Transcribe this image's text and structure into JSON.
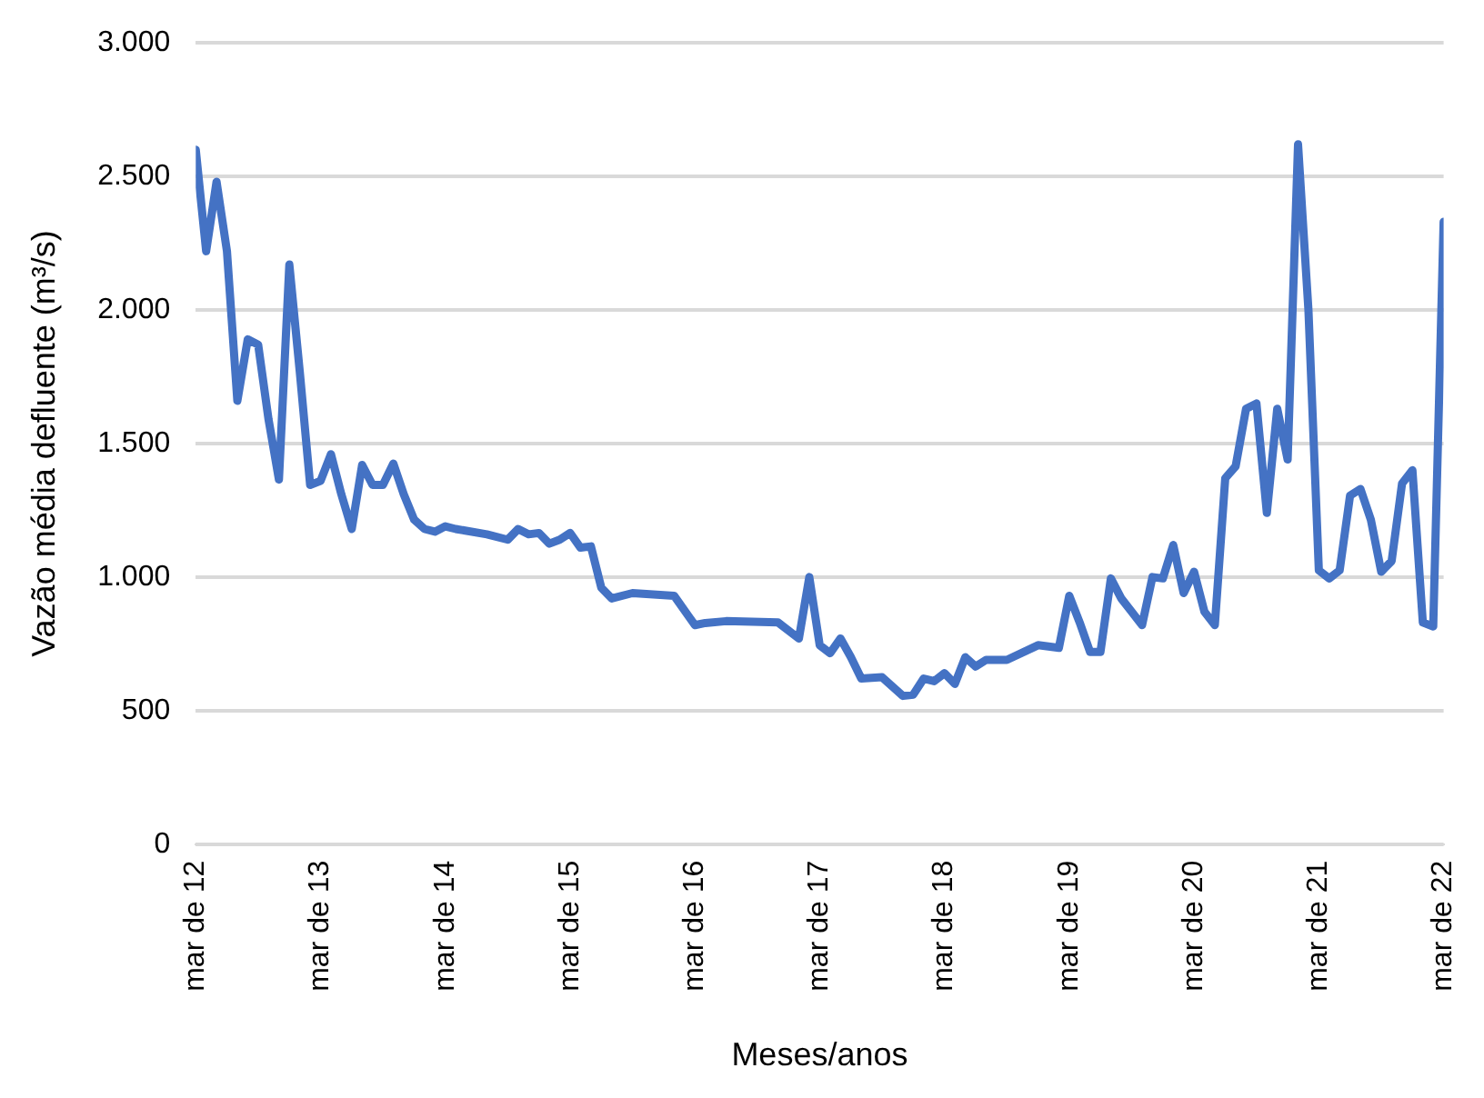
{
  "chart_data": {
    "type": "line",
    "xlabel": "Meses/anos",
    "ylabel": "Vazão média defluente (m³/s)",
    "x": [
      "2012-03",
      "2012-04",
      "2012-05",
      "2012-06",
      "2012-07",
      "2012-08",
      "2012-09",
      "2012-10",
      "2012-11",
      "2012-12",
      "2013-01",
      "2013-02",
      "2013-03",
      "2013-04",
      "2013-05",
      "2013-06",
      "2013-07",
      "2013-08",
      "2013-09",
      "2013-10",
      "2013-11",
      "2013-12",
      "2014-01",
      "2014-02",
      "2014-03",
      "2014-04",
      "2014-07",
      "2014-09",
      "2014-10",
      "2014-11",
      "2014-12",
      "2015-01",
      "2015-02",
      "2015-03",
      "2015-04",
      "2015-05",
      "2015-06",
      "2015-07",
      "2015-09",
      "2016-01",
      "2016-03",
      "2016-04",
      "2016-06",
      "2016-11",
      "2017-01",
      "2017-02",
      "2017-03",
      "2017-04",
      "2017-05",
      "2017-06",
      "2017-07",
      "2017-09",
      "2017-10",
      "2017-11",
      "2017-12",
      "2018-01",
      "2018-02",
      "2018-03",
      "2018-04",
      "2018-05",
      "2018-06",
      "2018-07",
      "2018-09",
      "2018-12",
      "2019-02",
      "2019-03",
      "2019-04",
      "2019-05",
      "2019-06",
      "2019-07",
      "2019-08",
      "2019-09",
      "2019-10",
      "2019-11",
      "2019-12",
      "2020-01",
      "2020-02",
      "2020-03",
      "2020-04",
      "2020-05",
      "2020-06",
      "2020-07",
      "2020-08",
      "2020-09",
      "2020-10",
      "2020-11",
      "2020-12",
      "2021-01",
      "2021-02",
      "2021-03",
      "2021-04",
      "2021-05",
      "2021-06",
      "2021-07",
      "2021-08",
      "2021-09",
      "2021-10",
      "2021-11",
      "2021-12",
      "2022-01",
      "2022-02",
      "2022-03"
    ],
    "series": [
      {
        "color": "#4472c4",
        "values": [
          2600,
          2220,
          2480,
          2220,
          1660,
          1890,
          1870,
          1590,
          1365,
          2170,
          1770,
          1345,
          1360,
          1460,
          1310,
          1180,
          1420,
          1345,
          1345,
          1425,
          1310,
          1215,
          1180,
          1170,
          1190,
          1180,
          1160,
          1140,
          1180,
          1160,
          1165,
          1125,
          1140,
          1165,
          1110,
          1115,
          960,
          920,
          940,
          930,
          820,
          828,
          835,
          830,
          770,
          1000,
          745,
          715,
          770,
          700,
          620,
          625,
          590,
          555,
          560,
          620,
          610,
          640,
          600,
          700,
          665,
          690,
          690,
          745,
          735,
          930,
          830,
          720,
          720,
          995,
          920,
          870,
          820,
          1000,
          995,
          1120,
          940,
          1020,
          870,
          820,
          1370,
          1415,
          1630,
          1650,
          1240,
          1630,
          1440,
          2620,
          2000,
          1025,
          995,
          1025,
          1305,
          1330,
          1215,
          1020,
          1060,
          1350,
          1400,
          830,
          815,
          2330
        ]
      }
    ],
    "xlim": [
      "2012-03",
      "2022-03"
    ],
    "xticks": [
      {
        "value": "2012-03",
        "label": "mar de 12"
      },
      {
        "value": "2013-03",
        "label": "mar de 13"
      },
      {
        "value": "2014-03",
        "label": "mar de 14"
      },
      {
        "value": "2015-03",
        "label": "mar de 15"
      },
      {
        "value": "2016-03",
        "label": "mar de 16"
      },
      {
        "value": "2017-03",
        "label": "mar de 17"
      },
      {
        "value": "2018-03",
        "label": "mar de 18"
      },
      {
        "value": "2019-03",
        "label": "mar de 19"
      },
      {
        "value": "2020-03",
        "label": "mar de 20"
      },
      {
        "value": "2021-03",
        "label": "mar de 21"
      },
      {
        "value": "2022-03",
        "label": "mar de 22"
      }
    ],
    "ylim": [
      0,
      3000
    ],
    "yticks": [
      0,
      {
        "value": 500,
        "label": "500"
      },
      {
        "value": 1000,
        "label": "1.000"
      },
      {
        "value": 1500,
        "label": "1.500"
      },
      {
        "value": 2000,
        "label": "2.000"
      },
      {
        "value": 2500,
        "label": "2.500"
      },
      {
        "value": 3000,
        "label": "3.000"
      }
    ],
    "grid": "y",
    "legend": false,
    "marker": "none",
    "line_style": "solid"
  }
}
